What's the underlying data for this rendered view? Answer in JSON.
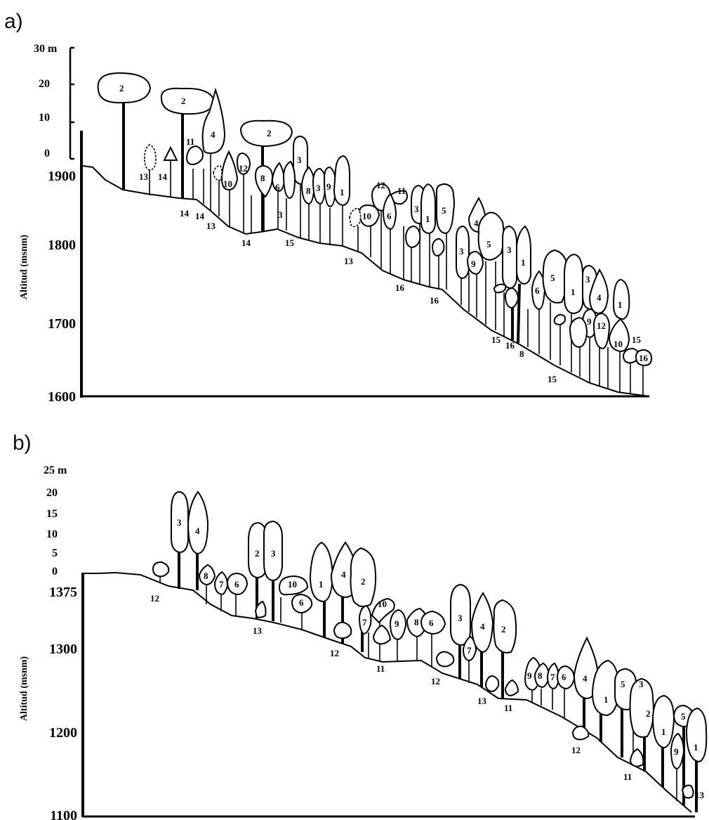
{
  "panels": [
    {
      "label": "a)",
      "y_axis_title": "Altitud (msnm)",
      "alt_ticks": [
        "1900",
        "1800",
        "1700",
        "1600"
      ],
      "height_scale": [
        "30 m",
        "20",
        "10",
        "0"
      ],
      "crown_labels": [
        "2",
        "2",
        "2",
        "4",
        "11",
        "13",
        "14",
        "12",
        "10",
        "8",
        "6",
        "3",
        "8",
        "3",
        "9",
        "1",
        "3",
        "10",
        "12",
        "11",
        "6",
        "3",
        "1",
        "5",
        "4",
        "3",
        "9",
        "5",
        "3",
        "1",
        "6",
        "5",
        "1",
        "3",
        "4",
        "9",
        "12",
        "1",
        "10",
        "15",
        "16"
      ],
      "ground_labels": [
        "14",
        "14",
        "13",
        "14",
        "15",
        "13",
        "16",
        "16",
        "15",
        "16",
        "8",
        "15"
      ]
    },
    {
      "label": "b)",
      "y_axis_title": "Altitud (msnm)",
      "alt_ticks": [
        "1375",
        "1300",
        "1200",
        "1100"
      ],
      "height_scale": [
        "25 m",
        "20",
        "15",
        "10",
        "5",
        "0"
      ],
      "crown_labels": [
        "3",
        "4",
        "8",
        "7",
        "6",
        "2",
        "3",
        "10",
        "6",
        "1",
        "4",
        "2",
        "10",
        "7",
        "9",
        "8",
        "6",
        "3",
        "7",
        "4",
        "2",
        "9",
        "8",
        "7",
        "6",
        "4",
        "1",
        "5",
        "3",
        "2",
        "1",
        "9",
        "5",
        "1"
      ],
      "ground_labels": [
        "12",
        "13",
        "12",
        "11",
        "12",
        "13",
        "11",
        "12",
        "11",
        "13"
      ]
    }
  ]
}
